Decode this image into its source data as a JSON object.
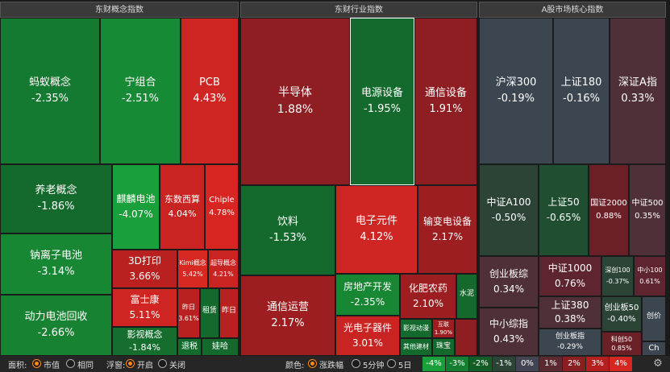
{
  "panels": {
    "concept": "东财概念指数",
    "industry": "东财行业指数",
    "core": "A股市场核心指数"
  },
  "concept_tiles": [
    {
      "name": "蚂蚁概念",
      "pct": "-2.35%"
    },
    {
      "name": "宁组合",
      "pct": "-2.51%"
    },
    {
      "name": "PCB",
      "pct": "4.43%"
    },
    {
      "name": "养老概念",
      "pct": "-1.86%"
    },
    {
      "name": "麒麟电池",
      "pct": "-4.07%"
    },
    {
      "name": "东数西算",
      "pct": "4.04%"
    },
    {
      "name": "Chiple",
      "pct": "4.78%"
    },
    {
      "name": "钠离子电池",
      "pct": "-3.14%"
    },
    {
      "name": "3D打印",
      "pct": "3.66%"
    },
    {
      "name": "Kimi概念",
      "pct": "5.42%"
    },
    {
      "name": "超导概念",
      "pct": "4.21%"
    },
    {
      "name": "动力电池回收",
      "pct": "-2.66%"
    },
    {
      "name": "富士康",
      "pct": "5.11%"
    },
    {
      "name": "昨日",
      "pct": "3.61%"
    },
    {
      "name": "租赁",
      "pct": ""
    },
    {
      "name": "昨日",
      "pct": ""
    },
    {
      "name": "影视概念",
      "pct": "-1.84%"
    },
    {
      "name": "退税",
      "pct": ""
    },
    {
      "name": "娃哈",
      "pct": ""
    }
  ],
  "industry_tiles": [
    {
      "name": "半导体",
      "pct": "1.88%"
    },
    {
      "name": "电源设备",
      "pct": "-1.95%"
    },
    {
      "name": "通信设备",
      "pct": "1.91%"
    },
    {
      "name": "饮料",
      "pct": "-1.53%"
    },
    {
      "name": "电子元件",
      "pct": "4.12%"
    },
    {
      "name": "输变电设备",
      "pct": "2.17%"
    },
    {
      "name": "通信运营",
      "pct": "2.17%"
    },
    {
      "name": "房地产开发",
      "pct": "-2.35%"
    },
    {
      "name": "化肥农药",
      "pct": "2.10%"
    },
    {
      "name": "水泥",
      "pct": ""
    },
    {
      "name": "光电子器件",
      "pct": "3.01%"
    },
    {
      "name": "影视动漫",
      "pct": ""
    },
    {
      "name": "互联",
      "pct": "1.90%"
    },
    {
      "name": "其他建材",
      "pct": ""
    },
    {
      "name": "珠宝",
      "pct": ""
    }
  ],
  "core_tiles": [
    {
      "name": "沪深300",
      "pct": "-0.19%"
    },
    {
      "name": "上证180",
      "pct": "-0.16%"
    },
    {
      "name": "深证A指",
      "pct": "0.33%"
    },
    {
      "name": "中证A100",
      "pct": "-0.50%"
    },
    {
      "name": "上证50",
      "pct": "-0.65%"
    },
    {
      "name": "国证2000",
      "pct": "0.88%"
    },
    {
      "name": "中证500",
      "pct": "0.35%"
    },
    {
      "name": "创业板综",
      "pct": "0.34%"
    },
    {
      "name": "中证1000",
      "pct": "0.76%"
    },
    {
      "name": "深创100",
      "pct": "-0.37%"
    },
    {
      "name": "中小100",
      "pct": "0.61%"
    },
    {
      "name": "上证380",
      "pct": "0.38%"
    },
    {
      "name": "中小综指",
      "pct": "0.43%"
    },
    {
      "name": "创业板50",
      "pct": "-0.40%"
    },
    {
      "name": "创业板指",
      "pct": "-0.29%"
    },
    {
      "name": "创价",
      "pct": ""
    },
    {
      "name": "科创50",
      "pct": "0.85%"
    },
    {
      "name": "Ch",
      "pct": ""
    }
  ],
  "controls": {
    "area_label": "面积:",
    "area_options": [
      "市值",
      "相同"
    ],
    "float_label": "浮窗:",
    "float_options": [
      "开启",
      "关闭"
    ],
    "color_label": "颜色:",
    "color_options": [
      "涨跌幅",
      "5分钟",
      "5日"
    ]
  },
  "legend": [
    {
      "label": "-4%",
      "color": "#1aa03a"
    },
    {
      "label": "-3%",
      "color": "#167e30"
    },
    {
      "label": "-2%",
      "color": "#135e27"
    },
    {
      "label": "-1%",
      "color": "#2c4436"
    },
    {
      "label": "0%",
      "color": "#424453"
    },
    {
      "label": "1%",
      "color": "#5a2a30"
    },
    {
      "label": "2%",
      "color": "#8a1f22"
    },
    {
      "label": "3%",
      "color": "#b3201f"
    },
    {
      "label": "4%",
      "color": "#d52621"
    }
  ],
  "icons": {
    "settings": "gear-icon"
  }
}
